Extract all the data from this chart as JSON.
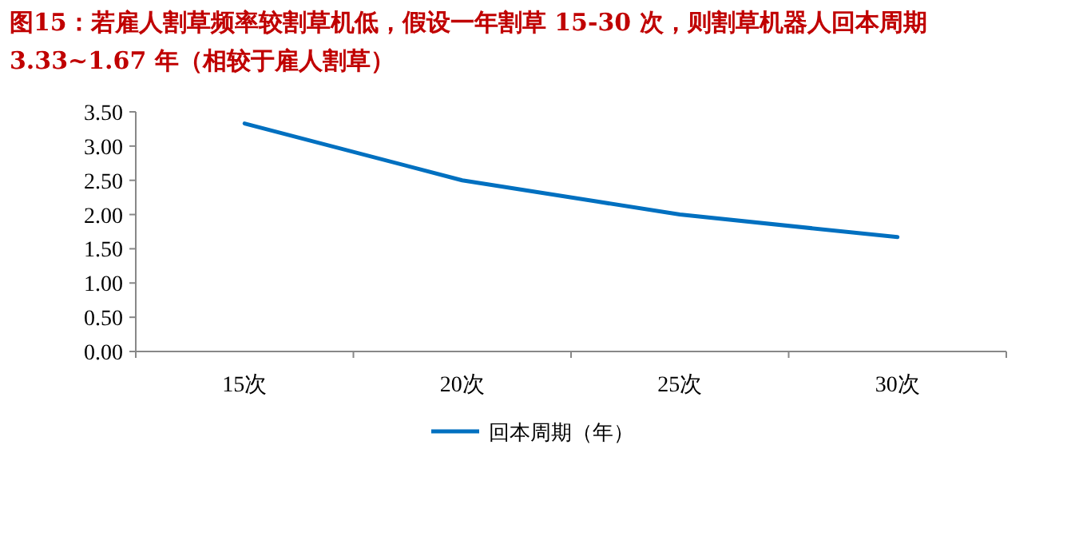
{
  "chart_data": {
    "type": "line",
    "title": "图15：若雇人割草频率较割草机低，假设一年割草 15-30 次，则割草机器人回本周期 3.33~1.67 年（相较于雇人割草）",
    "categories": [
      "15次",
      "20次",
      "25次",
      "30次"
    ],
    "series": [
      {
        "name": "回本周期（年）",
        "color": "#0070c0",
        "values": [
          3.33,
          2.5,
          2.0,
          1.67
        ]
      }
    ],
    "ylim": [
      0,
      3.5
    ],
    "yticks": [
      {
        "value": 0,
        "label": "0.00"
      },
      {
        "value": 0.5,
        "label": "0.50"
      },
      {
        "value": 1,
        "label": "1.00"
      },
      {
        "value": 1.5,
        "label": "1.50"
      },
      {
        "value": 2,
        "label": "2.00"
      },
      {
        "value": 2.5,
        "label": "2.50"
      },
      {
        "value": 3,
        "label": "3.00"
      },
      {
        "value": 3.5,
        "label": "3.50"
      }
    ],
    "legend": "bottom"
  }
}
